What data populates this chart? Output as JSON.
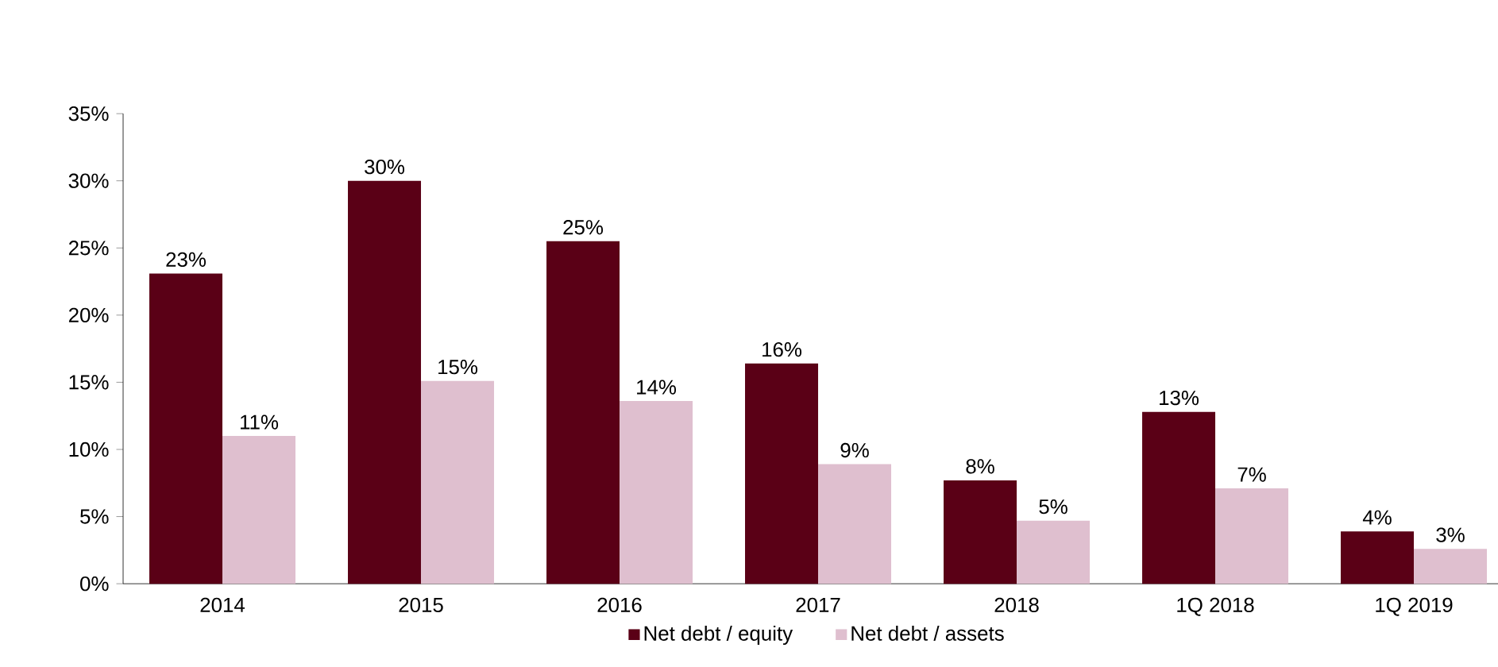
{
  "chart_data": {
    "type": "bar",
    "categories": [
      "2014",
      "2015",
      "2016",
      "2017",
      "2018",
      "1Q 2018",
      "1Q 2019"
    ],
    "series": [
      {
        "name": "Net debt / equity",
        "color": "#5a0016",
        "values": [
          23.1,
          30.0,
          25.5,
          16.4,
          7.7,
          12.8,
          3.9
        ],
        "value_labels": [
          "23%",
          "30%",
          "25%",
          "16%",
          "8%",
          "13%",
          "4%"
        ]
      },
      {
        "name": "Net debt / assets",
        "color": "#dfbfcf",
        "values": [
          11.0,
          15.1,
          13.6,
          8.9,
          4.7,
          7.1,
          2.6
        ],
        "value_labels": [
          "11%",
          "15%",
          "14%",
          "9%",
          "5%",
          "7%",
          "3%"
        ]
      }
    ],
    "ylim": [
      0,
      35
    ],
    "yticks": [
      {
        "value": 0,
        "label": "0%"
      },
      {
        "value": 5,
        "label": "5%"
      },
      {
        "value": 10,
        "label": "10%"
      },
      {
        "value": 15,
        "label": "15%"
      },
      {
        "value": 20,
        "label": "20%"
      },
      {
        "value": 25,
        "label": "25%"
      },
      {
        "value": 30,
        "label": "30%"
      },
      {
        "value": 35,
        "label": "35%"
      }
    ],
    "grid": false,
    "legend": "bottom"
  }
}
